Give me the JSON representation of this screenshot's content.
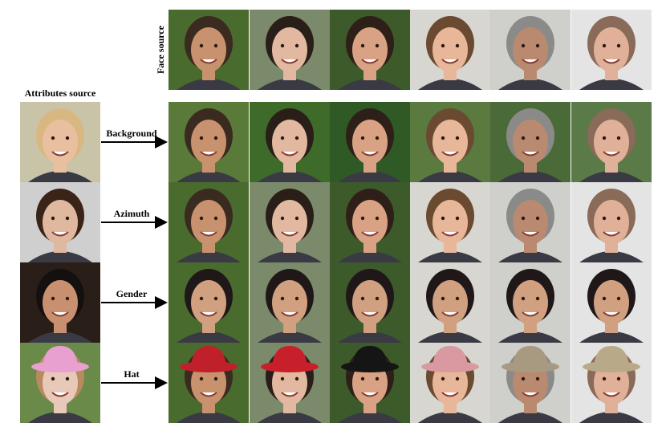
{
  "header": {
    "face_source": "Face source",
    "attributes_source": "Attributes source"
  },
  "rows": [
    {
      "label": "Background"
    },
    {
      "label": "Azimuth"
    },
    {
      "label": "Gender"
    },
    {
      "label": "Hat"
    }
  ]
}
